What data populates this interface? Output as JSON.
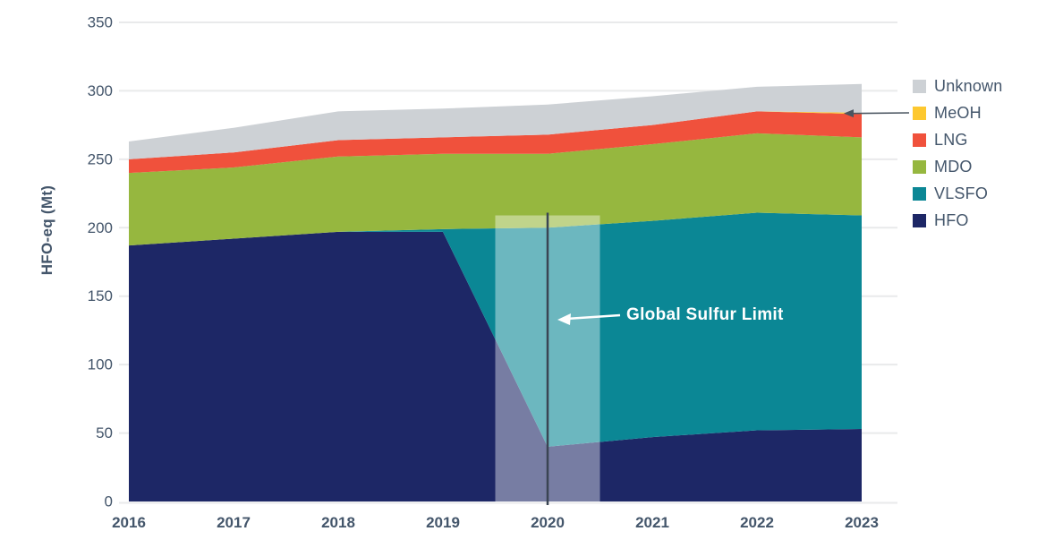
{
  "chart_data": {
    "type": "area",
    "stacked": true,
    "title": "",
    "xlabel": "",
    "ylabel": "HFO-eq (Mt)",
    "ylim": [
      0,
      350
    ],
    "y_ticks": [
      0,
      50,
      100,
      150,
      200,
      250,
      300,
      350
    ],
    "x": [
      2016,
      2017,
      2018,
      2019,
      2020,
      2021,
      2022,
      2023
    ],
    "x_labels": [
      "2016",
      "2017",
      "2018",
      "2019",
      "2020",
      "2021",
      "2022",
      "2023"
    ],
    "grid": "horizontal",
    "legend_position": "right",
    "series": [
      {
        "name": "HFO",
        "color": "#1d2766",
        "values": [
          187,
          192,
          197,
          197,
          40,
          47,
          52,
          53
        ]
      },
      {
        "name": "VLSFO",
        "color": "#0b8795",
        "values": [
          0,
          0,
          0,
          2,
          160,
          158,
          159,
          156
        ]
      },
      {
        "name": "MDO",
        "color": "#96b73f",
        "values": [
          53,
          52,
          55,
          55,
          54,
          56,
          58,
          57
        ]
      },
      {
        "name": "LNG",
        "color": "#f0513c",
        "values": [
          10,
          11,
          12,
          12,
          14,
          14,
          16,
          17
        ]
      },
      {
        "name": "MeOH",
        "color": "#fdc82f",
        "values": [
          0,
          0,
          0,
          0,
          0,
          0,
          0,
          1
        ]
      },
      {
        "name": "Unknown",
        "color": "#cdd1d5",
        "values": [
          13,
          18,
          21,
          21,
          22,
          21,
          18,
          21
        ]
      }
    ],
    "totals": [
      263,
      273,
      285,
      287,
      290,
      296,
      303,
      305
    ],
    "legend_order": [
      "Unknown",
      "MeOH",
      "LNG",
      "MDO",
      "VLSFO",
      "HFO"
    ],
    "annotations": {
      "sulfur_limit": {
        "label": "Global Sulfur Limit",
        "line_x": 2020,
        "band_x_start": 2019.5,
        "band_x_end": 2020.5,
        "band_y_top": 209,
        "band_opacity": 0.4
      },
      "meoh_callout": {
        "target_series": "MeOH",
        "target_x": 2023
      }
    },
    "colors": {
      "text": "#44566b",
      "gridline": "#e9eaeb",
      "sulfur_line": "#3a4553",
      "callout_arrow": "#4a5560",
      "annotation_text": "#ffffff"
    }
  }
}
